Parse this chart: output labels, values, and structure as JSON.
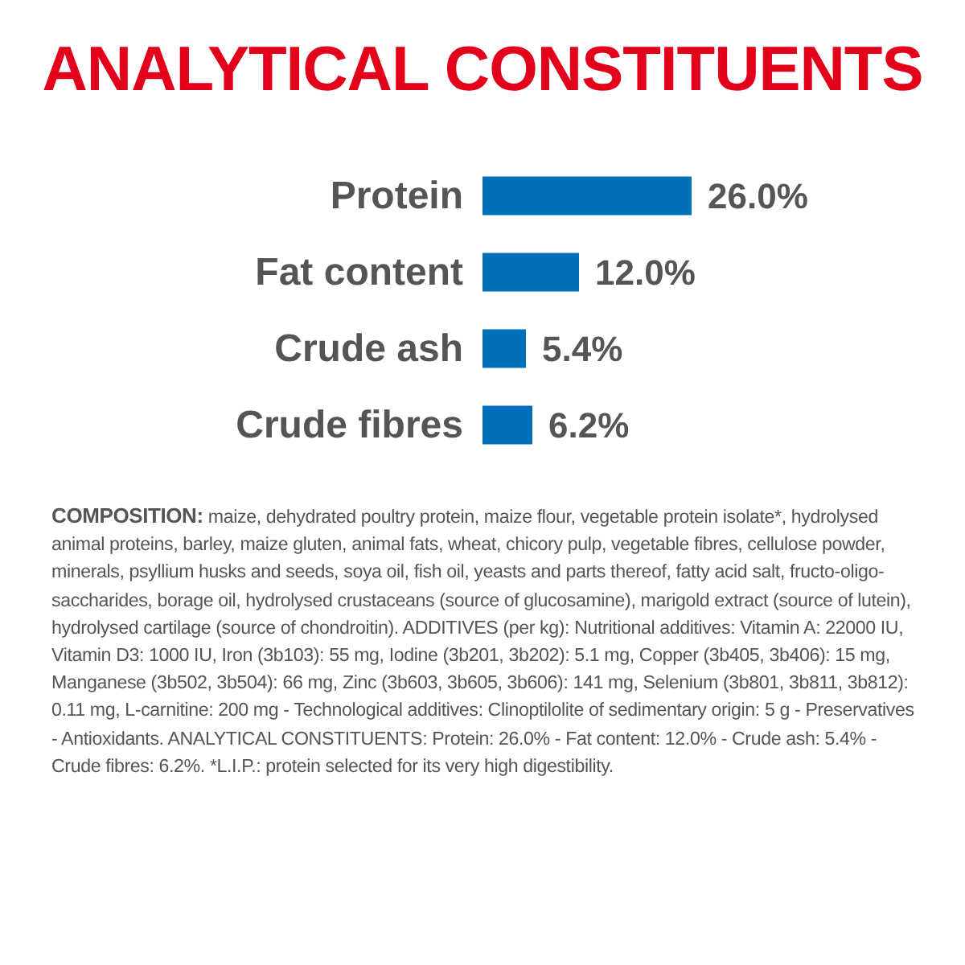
{
  "chart_data": {
    "type": "bar",
    "orientation": "horizontal",
    "title": "ANALYTICAL CONSTITUENTS",
    "categories": [
      "Protein",
      "Fat content",
      "Crude ash",
      "Crude fibres"
    ],
    "values": [
      26,
      12,
      5.4,
      6.2
    ],
    "color": "#0070bb",
    "value_labels": [
      "26.0%",
      "12.0%",
      "5.4%",
      "6.2%"
    ],
    "annotations": [
      "COMPOSITION: maize, dehydrated poultry protein, maize flour, vegetable protein isolate*, hydrolysed animal proteins, barley, maize gluten, animal fats, wheat, chicory pulp, vegetable fibres, cellulose powder, minerals, psyllium husks and seeds, soya oil, fish oil, yeasts and parts thereof, fatty acid salt, fructo-oligo-saccharides, borage oil, hydrolysed crustaceans (source of glucosamine), marigold extract (source of lutein), hydrolysed cartilage (source of chondroitin). ADDITIVES (per kg): Nutritional additives: Vitamin A: 22000 IU, Vitamin D3: 1000 IU, Iron (3b103): 55 mg, Iodine (3b201, 3b202): 5.1 mg, Copper (3b405, 3b406): 15 mg, Manganese (3b502, 3b504): 66 mg, Zinc (3b603, 3b605, 3b606): 141 mg, Selenium (3b801, 3b811, 3b812): 0.11 mg, L-carnitine: 200 mg - Technological additives: Clinoptilolite of sedimentary origin: 5 g - Preservatives - Antioxidants. ANALYTICAL CONSTITUENTS: Protein: 26.0% - Fat content: 12.0% - Crude ash: 5.4% - Crude fibres: 6.2%. *L.I.P.: protein selected for its very high digestibility."
    ]
  }
}
